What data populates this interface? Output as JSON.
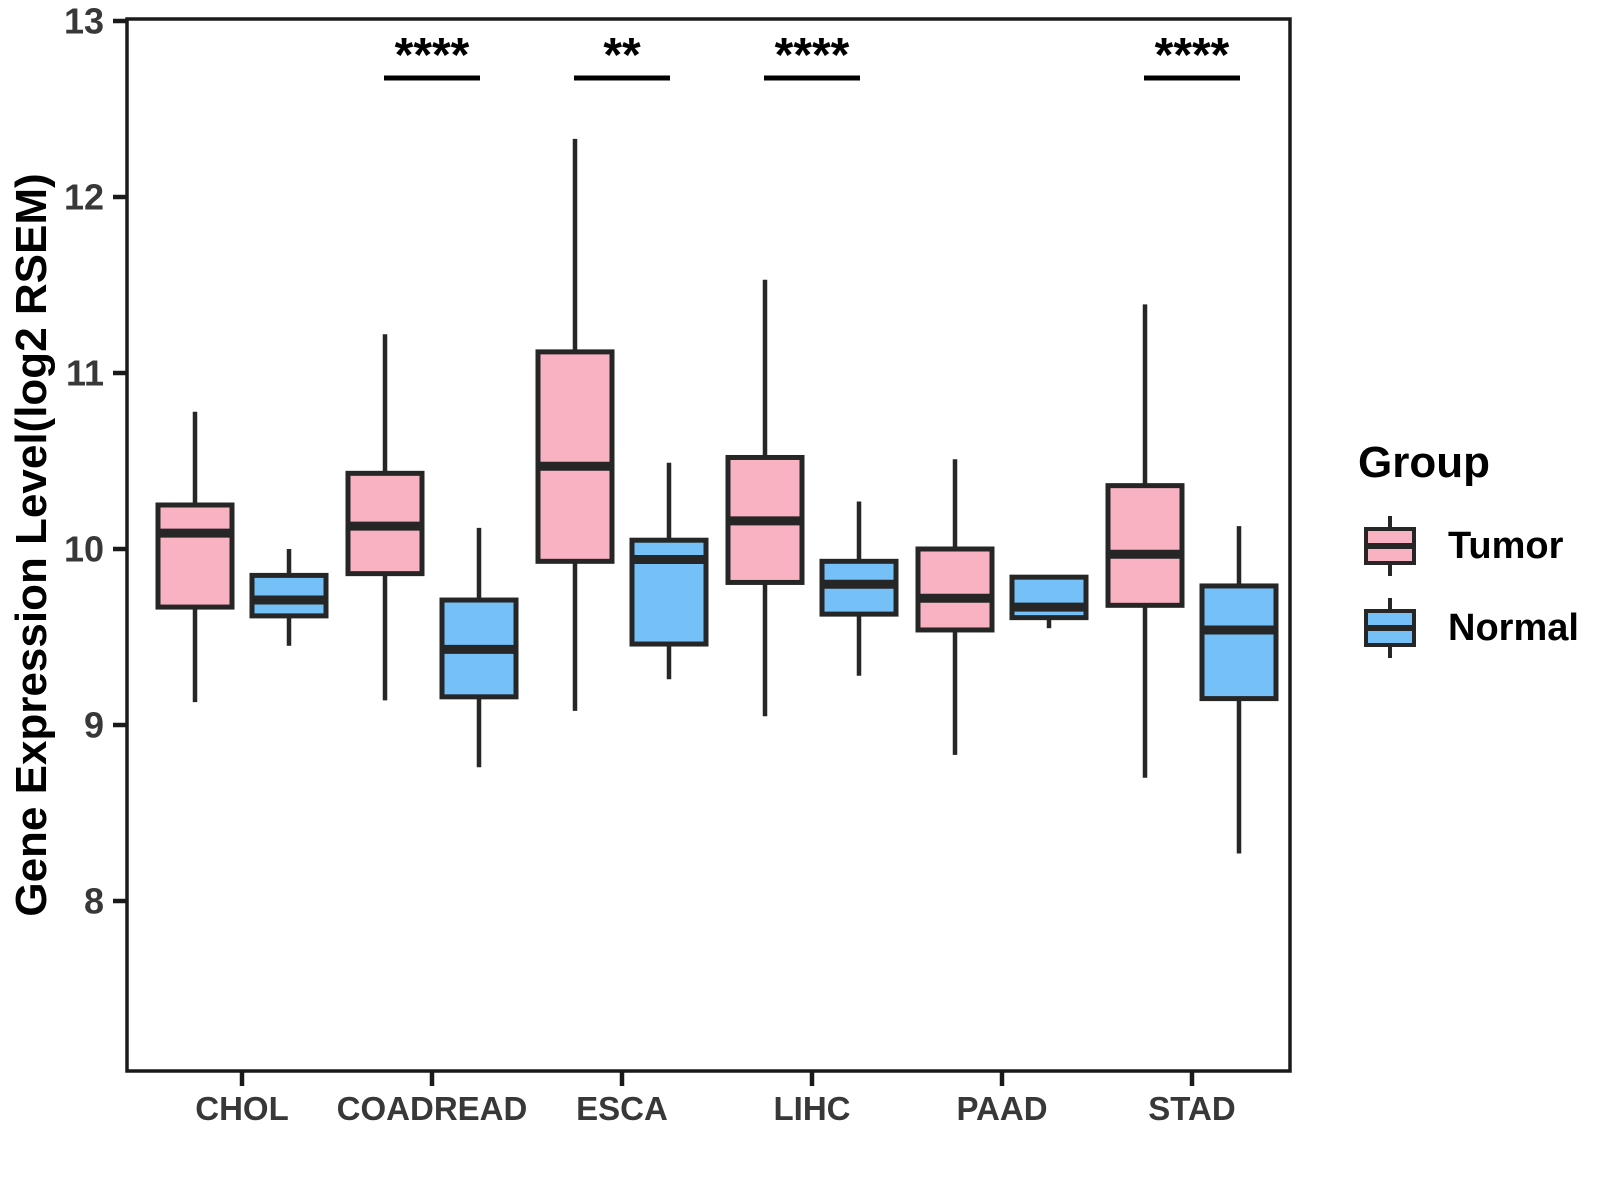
{
  "chart_data": {
    "type": "boxplot",
    "title": "",
    "xlabel": "",
    "ylabel": "Gene Expression Level(log2 RSEM)",
    "categories": [
      "CHOL",
      "COADREAD",
      "ESCA",
      "LIHC",
      "PAAD",
      "STAD"
    ],
    "yticks": [
      8,
      9,
      10,
      11,
      12,
      13
    ],
    "ylim": [
      7.0,
      13.05
    ],
    "grid": false,
    "legend_position": "right",
    "series": [
      {
        "name": "Tumor",
        "color": "#F9B2C2",
        "boxes": [
          {
            "whislo": 9.13,
            "q1": 9.67,
            "med": 10.09,
            "q3": 10.25,
            "whishi": 10.78
          },
          {
            "whislo": 9.14,
            "q1": 9.86,
            "med": 10.13,
            "q3": 10.43,
            "whishi": 11.22
          },
          {
            "whislo": 9.08,
            "q1": 9.93,
            "med": 10.47,
            "q3": 11.12,
            "whishi": 12.33
          },
          {
            "whislo": 9.05,
            "q1": 9.81,
            "med": 10.16,
            "q3": 10.52,
            "whishi": 11.53
          },
          {
            "whislo": 8.83,
            "q1": 9.54,
            "med": 9.72,
            "q3": 10.0,
            "whishi": 10.51
          },
          {
            "whislo": 8.7,
            "q1": 9.68,
            "med": 9.97,
            "q3": 10.36,
            "whishi": 11.39
          }
        ]
      },
      {
        "name": "Normal",
        "color": "#74C0F7",
        "boxes": [
          {
            "whislo": 9.45,
            "q1": 9.62,
            "med": 9.71,
            "q3": 9.85,
            "whishi": 10.0
          },
          {
            "whislo": 8.76,
            "q1": 9.16,
            "med": 9.43,
            "q3": 9.71,
            "whishi": 10.12
          },
          {
            "whislo": 9.26,
            "q1": 9.46,
            "med": 9.94,
            "q3": 10.05,
            "whishi": 10.49
          },
          {
            "whislo": 9.28,
            "q1": 9.63,
            "med": 9.8,
            "q3": 9.93,
            "whishi": 10.27
          },
          {
            "whislo": 9.55,
            "q1": 9.61,
            "med": 9.67,
            "q3": 9.84,
            "whishi": 9.84
          },
          {
            "whislo": 8.27,
            "q1": 9.15,
            "med": 9.54,
            "q3": 9.79,
            "whishi": 10.13
          }
        ]
      }
    ],
    "significance": [
      {
        "category": "COADREAD",
        "label": "****"
      },
      {
        "category": "ESCA",
        "label": "**"
      },
      {
        "category": "LIHC",
        "label": "****"
      },
      {
        "category": "STAD",
        "label": "****"
      }
    ]
  },
  "legend": {
    "title": "Group",
    "items": [
      {
        "label": "Tumor",
        "color": "#F9B2C2"
      },
      {
        "label": "Normal",
        "color": "#74C0F7"
      }
    ]
  },
  "style": {
    "box_border": "#262626",
    "axis_color": "#1a1a1a",
    "tick_text_color": "#383838",
    "title_color": "#000000",
    "background": "#ffffff"
  }
}
